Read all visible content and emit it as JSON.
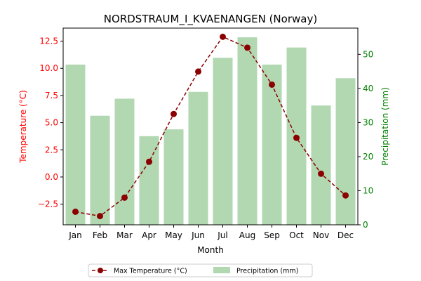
{
  "chart_data": {
    "type": "bar+line",
    "title": "NORDSTRAUM_I_KVAENANGEN (Norway)",
    "xlabel": "Month",
    "y_left_label": "Temperature (°C)",
    "y_right_label": "Precipitation (mm)",
    "categories": [
      "Jan",
      "Feb",
      "Mar",
      "Apr",
      "May",
      "Jun",
      "Jul",
      "Aug",
      "Sep",
      "Oct",
      "Nov",
      "Dec"
    ],
    "series": [
      {
        "name": "Max Temperature (°C)",
        "axis": "left",
        "kind": "line",
        "style": "dashed",
        "marker": "circle",
        "color": "#8b0000",
        "values": [
          -3.2,
          -3.6,
          -1.9,
          1.4,
          5.8,
          9.7,
          12.9,
          11.9,
          8.5,
          3.6,
          0.3,
          -1.7
        ]
      },
      {
        "name": "Precipitation (mm)",
        "axis": "right",
        "kind": "bar",
        "color": "#b2d8b2",
        "values": [
          47,
          32,
          37,
          26,
          28,
          39,
          49,
          55,
          47,
          52,
          35,
          43
        ]
      }
    ],
    "y_left_range": [
      -4.4,
      13.7
    ],
    "y_left_ticks": [
      "−2.5",
      "0.0",
      "2.5",
      "5.0",
      "7.5",
      "10.0",
      "12.5"
    ],
    "y_left_tick_values": [
      -2.5,
      0,
      2.5,
      5,
      7.5,
      10,
      12.5
    ],
    "y_right_range": [
      0,
      57.7
    ],
    "y_right_ticks": [
      "0",
      "10",
      "20",
      "30",
      "40",
      "50"
    ],
    "y_right_tick_values": [
      0,
      10,
      20,
      30,
      40,
      50
    ],
    "left_axis_color": "#ff0000",
    "right_axis_color": "#008000",
    "legend_position": "bottom-center",
    "grid": false
  }
}
